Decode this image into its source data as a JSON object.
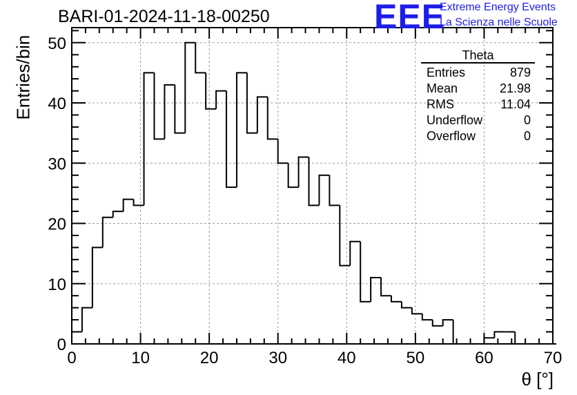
{
  "chart_data": {
    "type": "histogram",
    "title": "BARI-01-2024-11-18-00250",
    "xlabel": "θ [°]",
    "ylabel": "Entries/bin",
    "xlim": [
      0,
      70
    ],
    "ylim": [
      0,
      52.5
    ],
    "xticks": [
      0,
      10,
      20,
      30,
      40,
      50,
      60,
      70
    ],
    "yticks": [
      0,
      10,
      20,
      30,
      40,
      50
    ],
    "grid": true,
    "bin_width": 1.5,
    "bin_edges_start": 0,
    "values": [
      2,
      6,
      16,
      21,
      22,
      24,
      23,
      45,
      34,
      43,
      35,
      50,
      45,
      39,
      42,
      26,
      45,
      35,
      41,
      34,
      30,
      26,
      31,
      23,
      28,
      23,
      13,
      17,
      7,
      11,
      8,
      7,
      6,
      5,
      4,
      3,
      4,
      0,
      0,
      0,
      1,
      2,
      2,
      0,
      0,
      0,
      0
    ],
    "stats_box": {
      "name": "Theta",
      "rows": [
        {
          "label": "Entries",
          "value": "879"
        },
        {
          "label": "Mean",
          "value": "21.98"
        },
        {
          "label": "RMS",
          "value": "11.04"
        },
        {
          "label": "Underflow",
          "value": "0"
        },
        {
          "label": "Overflow",
          "value": "0"
        }
      ],
      "placement": "top-right"
    },
    "logo": {
      "mark": "EEE",
      "line1": "Extreme Energy Events",
      "line2": "La Scienza nelle Scuole",
      "color": "#1d1de8"
    }
  }
}
